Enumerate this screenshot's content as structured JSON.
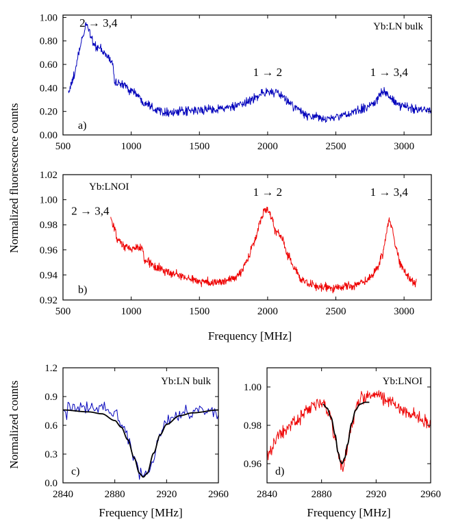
{
  "figure": {
    "shared_xlabel_ab": "Frequency [MHz]",
    "shared_ylabel_ab": "Normalized fluorescence counts",
    "ylabel_cd": "Normalized counts"
  },
  "chart_data": [
    {
      "id": "a",
      "type": "line",
      "panel_label": "a)",
      "legend_text": "Yb:LN bulk",
      "xlim": [
        500,
        3200
      ],
      "ylim": [
        0.0,
        1.02
      ],
      "xticks": [
        500,
        1000,
        1500,
        2000,
        2500,
        3000
      ],
      "xtick_labels": [
        "500",
        "1000",
        "1500",
        "2000",
        "2500",
        "3000"
      ],
      "yticks": [
        0.0,
        0.2,
        0.4,
        0.6,
        0.8,
        1.0
      ],
      "ytick_labels": [
        "0.00",
        "0.20",
        "0.40",
        "0.60",
        "0.80",
        "1.00"
      ],
      "annotations": [
        {
          "text": "2 → 3,4",
          "x": 760,
          "y": 0.92
        },
        {
          "text": "1 → 2",
          "x": 2000,
          "y": 0.5
        },
        {
          "text": "1 → 3,4",
          "x": 2890,
          "y": 0.5
        }
      ],
      "series": [
        {
          "color": "#0000bb",
          "x_range": [
            540,
            3200
          ],
          "profile_x": [
            540,
            560,
            580,
            600,
            620,
            650,
            670,
            690,
            710,
            730,
            760,
            800,
            830,
            860,
            880,
            900,
            950,
            1000,
            1100,
            1200,
            1300,
            1400,
            1500,
            1600,
            1700,
            1800,
            1900,
            1950,
            2000,
            2050,
            2100,
            2150,
            2200,
            2300,
            2400,
            2450,
            2500,
            2600,
            2700,
            2750,
            2800,
            2830,
            2850,
            2870,
            2900,
            2950,
            3000,
            3100,
            3200
          ],
          "profile_y": [
            0.37,
            0.42,
            0.5,
            0.6,
            0.72,
            0.85,
            0.95,
            0.9,
            0.82,
            0.76,
            0.74,
            0.7,
            0.66,
            0.62,
            0.46,
            0.44,
            0.42,
            0.38,
            0.28,
            0.21,
            0.19,
            0.2,
            0.21,
            0.22,
            0.23,
            0.25,
            0.31,
            0.35,
            0.37,
            0.36,
            0.33,
            0.29,
            0.23,
            0.16,
            0.14,
            0.14,
            0.15,
            0.18,
            0.22,
            0.25,
            0.3,
            0.36,
            0.37,
            0.35,
            0.31,
            0.26,
            0.24,
            0.22,
            0.22
          ],
          "noise": 0.035,
          "points": 900
        }
      ]
    },
    {
      "id": "b",
      "type": "line",
      "panel_label": "b)",
      "legend_text": "Yb:LNOI",
      "xlim": [
        500,
        3200
      ],
      "ylim": [
        0.92,
        1.02
      ],
      "xticks": [
        500,
        1000,
        1500,
        2000,
        2500,
        3000
      ],
      "xtick_labels": [
        "500",
        "1000",
        "1500",
        "2000",
        "2500",
        "3000"
      ],
      "yticks": [
        0.92,
        0.94,
        0.96,
        0.98,
        1.0,
        1.02
      ],
      "ytick_labels": [
        "0.92",
        "0.94",
        "0.96",
        "0.98",
        "1.00",
        "1.02"
      ],
      "annotations": [
        {
          "text": "2 → 3,4",
          "x": 700,
          "y": 0.988
        },
        {
          "text": "1 → 2",
          "x": 2000,
          "y": 1.003
        },
        {
          "text": "1 → 3,4",
          "x": 2890,
          "y": 1.003
        }
      ],
      "series": [
        {
          "color": "#ee0000",
          "x_range": [
            850,
            3090
          ],
          "profile_x": [
            850,
            870,
            900,
            950,
            1000,
            1050,
            1080,
            1100,
            1200,
            1300,
            1400,
            1500,
            1600,
            1700,
            1750,
            1800,
            1850,
            1900,
            1950,
            1980,
            2000,
            2030,
            2060,
            2100,
            2150,
            2200,
            2250,
            2300,
            2400,
            2500,
            2600,
            2700,
            2750,
            2800,
            2840,
            2870,
            2890,
            2910,
            2940,
            2970,
            3000,
            3050,
            3090
          ],
          "profile_y": [
            0.985,
            0.978,
            0.968,
            0.962,
            0.961,
            0.962,
            0.96,
            0.952,
            0.945,
            0.941,
            0.938,
            0.935,
            0.934,
            0.935,
            0.937,
            0.942,
            0.952,
            0.965,
            0.984,
            0.993,
            0.992,
            0.985,
            0.975,
            0.97,
            0.955,
            0.945,
            0.936,
            0.932,
            0.93,
            0.93,
            0.931,
            0.934,
            0.938,
            0.945,
            0.957,
            0.972,
            0.985,
            0.978,
            0.962,
            0.95,
            0.943,
            0.937,
            0.933
          ],
          "noise": 0.0032,
          "points": 880
        }
      ]
    },
    {
      "id": "c",
      "type": "line",
      "panel_label": "c)",
      "legend_text": "Yb:LN bulk",
      "xlabel": "Frequency [MHz]",
      "xlim": [
        2840,
        2960
      ],
      "ylim": [
        0.0,
        1.2
      ],
      "xticks": [
        2840,
        2880,
        2920,
        2960
      ],
      "xtick_labels": [
        "2840",
        "2880",
        "2920",
        "2960"
      ],
      "yticks": [
        0.0,
        0.3,
        0.6,
        0.9,
        1.2
      ],
      "ytick_labels": [
        "0.0",
        "0.3",
        "0.6",
        "0.9",
        "1.2"
      ],
      "series": [
        {
          "color": "#0000bb",
          "x_range": [
            2840,
            2960
          ],
          "profile_x": [
            2840,
            2860,
            2870,
            2880,
            2885,
            2890,
            2895,
            2900,
            2903,
            2906,
            2910,
            2915,
            2920,
            2930,
            2940,
            2960
          ],
          "profile_y": [
            0.75,
            0.78,
            0.8,
            0.72,
            0.65,
            0.48,
            0.28,
            0.1,
            0.05,
            0.12,
            0.3,
            0.5,
            0.62,
            0.72,
            0.75,
            0.76
          ],
          "noise": 0.07,
          "points": 125
        },
        {
          "color": "#000000",
          "x_range": [
            2840,
            2960
          ],
          "profile_x": [
            2840,
            2860,
            2870,
            2880,
            2885,
            2890,
            2895,
            2899,
            2902,
            2905,
            2910,
            2915,
            2920,
            2930,
            2940,
            2960
          ],
          "profile_y": [
            0.76,
            0.74,
            0.72,
            0.65,
            0.58,
            0.45,
            0.26,
            0.1,
            0.06,
            0.1,
            0.31,
            0.5,
            0.61,
            0.7,
            0.73,
            0.76
          ],
          "noise": 0,
          "points": 240
        }
      ]
    },
    {
      "id": "d",
      "type": "line",
      "panel_label": "d)",
      "legend_text": "Yb:LNOI",
      "xlabel": "Frequency [MHz]",
      "xlim": [
        2840,
        2960
      ],
      "ylim": [
        0.95,
        1.01
      ],
      "xticks": [
        2840,
        2880,
        2920,
        2960
      ],
      "xtick_labels": [
        "2840",
        "2880",
        "2920",
        "2960"
      ],
      "yticks": [
        0.96,
        0.98,
        1.0
      ],
      "ytick_labels": [
        "0.96",
        "0.98",
        "1.00"
      ],
      "series": [
        {
          "color": "#ee0000",
          "x_range": [
            2840,
            2960
          ],
          "profile_x": [
            2840,
            2850,
            2860,
            2870,
            2878,
            2882,
            2886,
            2890,
            2893,
            2895,
            2898,
            2902,
            2906,
            2910,
            2920,
            2930,
            2940,
            2950,
            2960
          ],
          "profile_y": [
            0.966,
            0.975,
            0.982,
            0.988,
            0.991,
            0.99,
            0.985,
            0.973,
            0.962,
            0.958,
            0.965,
            0.98,
            0.99,
            0.995,
            0.996,
            0.992,
            0.988,
            0.985,
            0.98
          ],
          "noise": 0.0032,
          "points": 320
        },
        {
          "color": "#000000",
          "x_range": [
            2881,
            2915
          ],
          "profile_x": [
            2881,
            2884,
            2887,
            2890,
            2892,
            2894,
            2895,
            2897,
            2899,
            2902,
            2905,
            2908,
            2912,
            2915
          ],
          "profile_y": [
            0.991,
            0.989,
            0.984,
            0.975,
            0.966,
            0.961,
            0.96,
            0.963,
            0.97,
            0.981,
            0.988,
            0.991,
            0.992,
            0.992
          ],
          "noise": 0,
          "points": 160
        }
      ]
    }
  ]
}
